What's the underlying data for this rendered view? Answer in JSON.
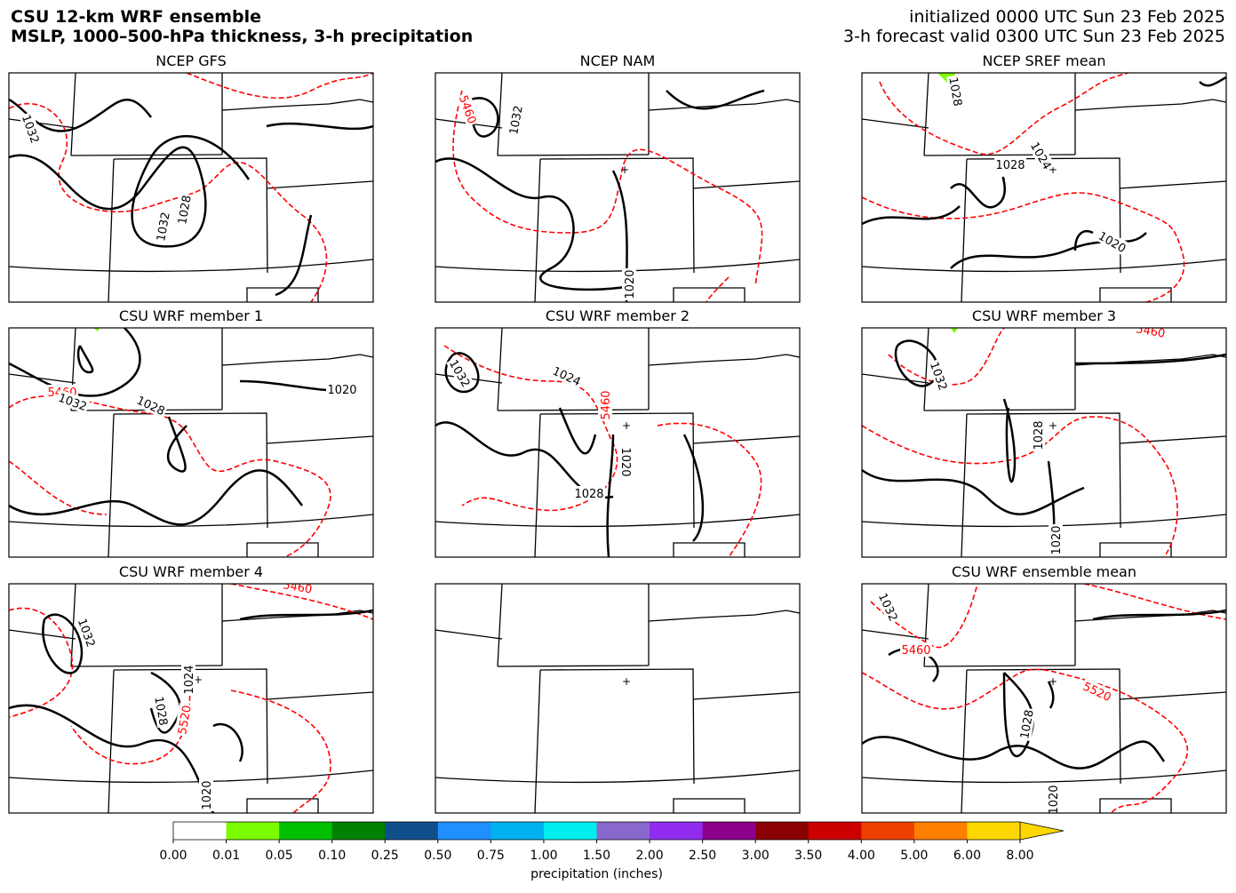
{
  "header": {
    "left_lines": [
      "CSU 12-km WRF ensemble",
      "MSLP, 1000–500-hPa thickness, 3-h precipitation"
    ],
    "right_lines": [
      "initialized 0000 UTC Sun 23 Feb 2025",
      "3-h forecast valid 0300 UTC Sun 23 Feb 2025"
    ]
  },
  "panels": [
    {
      "title": "NCEP GFS",
      "contour_labels": [
        {
          "value": 1032,
          "color": "black"
        },
        {
          "value": 1032,
          "color": "black"
        },
        {
          "value": 1028,
          "color": "black"
        }
      ]
    },
    {
      "title": "NCEP NAM",
      "contour_labels": [
        {
          "value": 5460,
          "color": "red"
        },
        {
          "value": 1032,
          "color": "black"
        },
        {
          "value": 1020,
          "color": "black"
        }
      ]
    },
    {
      "title": "NCEP SREF mean",
      "contour_labels": [
        {
          "value": 1028,
          "color": "black"
        },
        {
          "value": 1024,
          "color": "black"
        },
        {
          "value": 1028,
          "color": "black"
        },
        {
          "value": 1020,
          "color": "black"
        }
      ]
    },
    {
      "title": "CSU WRF member 1",
      "contour_labels": [
        {
          "value": 5460,
          "color": "red"
        },
        {
          "value": 1032,
          "color": "black"
        },
        {
          "value": 1028,
          "color": "black"
        },
        {
          "value": 1020,
          "color": "black"
        }
      ]
    },
    {
      "title": "CSU WRF member 2",
      "contour_labels": [
        {
          "value": 1032,
          "color": "black"
        },
        {
          "value": 1024,
          "color": "black"
        },
        {
          "value": 5460,
          "color": "red"
        },
        {
          "value": 1020,
          "color": "black"
        },
        {
          "value": 1028,
          "color": "black"
        }
      ]
    },
    {
      "title": "CSU WRF member 3",
      "contour_labels": [
        {
          "value": 5460,
          "color": "red"
        },
        {
          "value": 1032,
          "color": "black"
        },
        {
          "value": 1028,
          "color": "black"
        },
        {
          "value": 1020,
          "color": "black"
        }
      ]
    },
    {
      "title": "CSU WRF member 4",
      "contour_labels": [
        {
          "value": 5460,
          "color": "red"
        },
        {
          "value": 1032,
          "color": "black"
        },
        {
          "value": 1024,
          "color": "black"
        },
        {
          "value": 1028,
          "color": "black"
        },
        {
          "value": 5520,
          "color": "red"
        },
        {
          "value": 1020,
          "color": "black"
        }
      ]
    },
    {
      "contour_labels": []
    },
    {
      "title": "CSU WRF ensemble mean",
      "contour_labels": [
        {
          "value": 1032,
          "color": "black"
        },
        {
          "value": 5460,
          "color": "red"
        },
        {
          "value": 5520,
          "color": "red"
        },
        {
          "value": 1028,
          "color": "black"
        },
        {
          "value": 1020,
          "color": "black"
        }
      ]
    }
  ],
  "colorbar": {
    "label": "precipitation (inches)",
    "ticks": [
      {
        "value": 0,
        "label": "0.00"
      },
      {
        "value": 0.01,
        "label": "0.01"
      },
      {
        "value": 0.05,
        "label": "0.05"
      },
      {
        "value": 0.1,
        "label": "0.10"
      },
      {
        "value": 0.25,
        "label": "0.25"
      },
      {
        "value": 0.5,
        "label": "0.50"
      },
      {
        "value": 0.75,
        "label": "0.75"
      },
      {
        "value": 1,
        "label": "1.00"
      },
      {
        "value": 1.5,
        "label": "1.50"
      },
      {
        "value": 2,
        "label": "2.00"
      },
      {
        "value": 2.5,
        "label": "2.50"
      },
      {
        "value": 3,
        "label": "3.00"
      },
      {
        "value": 3.5,
        "label": "3.50"
      },
      {
        "value": 4,
        "label": "4.00"
      },
      {
        "value": 5,
        "label": "5.00"
      },
      {
        "value": 6,
        "label": "6.00"
      },
      {
        "value": 8,
        "label": "8.00"
      }
    ],
    "colors": [
      "#ffffff",
      "#7cfc00",
      "#00c000",
      "#008000",
      "#104e8b",
      "#1e90ff",
      "#00b2ee",
      "#00eeee",
      "#8968cd",
      "#912cee",
      "#8b008b",
      "#8b0000",
      "#cd0000",
      "#ee4000",
      "#ff7f00",
      "#ffd700"
    ],
    "extend_color": "#ffd700"
  }
}
